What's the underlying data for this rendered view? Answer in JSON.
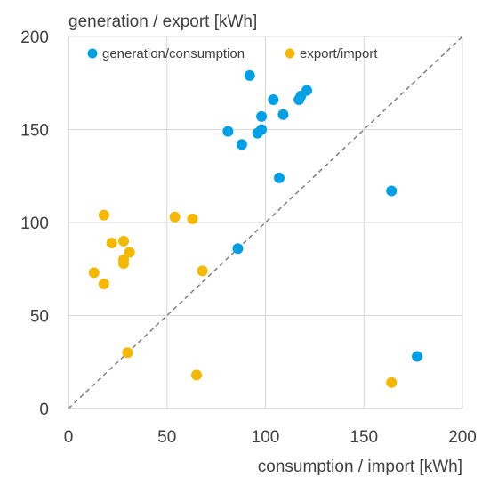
{
  "chart_data": {
    "type": "scatter",
    "xlabel": "consumption / import [kWh]",
    "ylabel": "generation / export [kWh]",
    "xlim": [
      0,
      200
    ],
    "ylim": [
      0,
      200
    ],
    "xticks": [
      0,
      50,
      100,
      150,
      200
    ],
    "yticks": [
      0,
      50,
      100,
      150,
      200
    ],
    "grid": true,
    "legend_position": "top",
    "reference_line": {
      "style": "dashed",
      "color": "#7f7f7f",
      "from": [
        0,
        0
      ],
      "to": [
        200,
        200
      ]
    },
    "series": [
      {
        "name": "generation/consumption",
        "color": "#00a0e6",
        "points": [
          [
            92,
            179
          ],
          [
            104,
            166
          ],
          [
            117,
            166
          ],
          [
            118,
            168
          ],
          [
            121,
            171
          ],
          [
            81,
            149
          ],
          [
            98,
            157
          ],
          [
            96,
            148
          ],
          [
            98,
            150
          ],
          [
            109,
            158
          ],
          [
            88,
            142
          ],
          [
            107,
            124
          ],
          [
            164,
            117
          ],
          [
            86,
            86
          ],
          [
            177,
            28
          ]
        ]
      },
      {
        "name": "export/import",
        "color": "#f5b800",
        "points": [
          [
            18,
            104
          ],
          [
            22,
            89
          ],
          [
            28,
            90
          ],
          [
            31,
            84
          ],
          [
            28,
            80
          ],
          [
            28,
            78
          ],
          [
            13,
            73
          ],
          [
            18,
            67
          ],
          [
            54,
            103
          ],
          [
            63,
            102
          ],
          [
            68,
            74
          ],
          [
            30,
            30
          ],
          [
            65,
            18
          ],
          [
            164,
            14
          ]
        ]
      }
    ]
  }
}
